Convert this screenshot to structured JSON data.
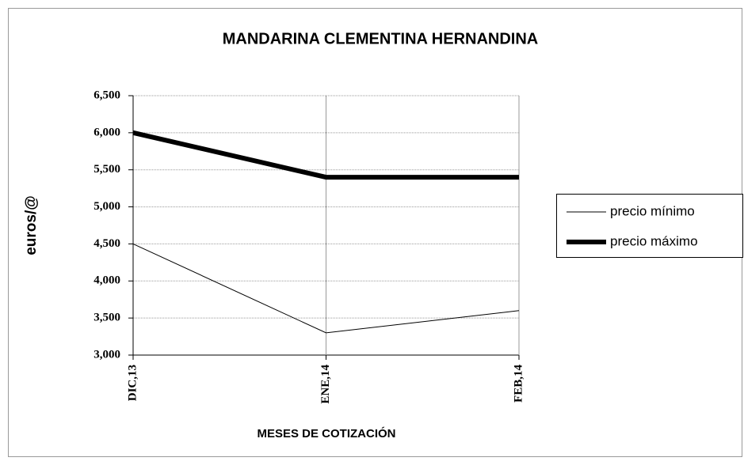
{
  "chart_data": {
    "type": "line",
    "title": "MANDARINA CLEMENTINA HERNANDINA",
    "x_label": "MESES DE COTIZACIÓN",
    "y_label": "euros/@",
    "categories": [
      "DIC,13",
      "ENE,14",
      "FEB,14"
    ],
    "series": [
      {
        "name": "precio mínimo",
        "color": "#000000",
        "width": 1,
        "values": [
          4.5,
          3.3,
          3.6
        ]
      },
      {
        "name": "precio máximo",
        "color": "#000000",
        "width": 6,
        "values": [
          6.0,
          5.4,
          5.4
        ]
      }
    ],
    "ylim": [
      3,
      6.5
    ],
    "yticks": [
      {
        "value": 3,
        "label": "3,000"
      },
      {
        "value": 3.5,
        "label": "3,500"
      },
      {
        "value": 4,
        "label": "4,000"
      },
      {
        "value": 4.5,
        "label": "4,500"
      },
      {
        "value": 5,
        "label": "5,000"
      },
      {
        "value": 5.5,
        "label": "5,500"
      },
      {
        "value": 6,
        "label": "6,000"
      },
      {
        "value": 6.5,
        "label": "6,500"
      }
    ],
    "grid": true,
    "legend": "right"
  }
}
